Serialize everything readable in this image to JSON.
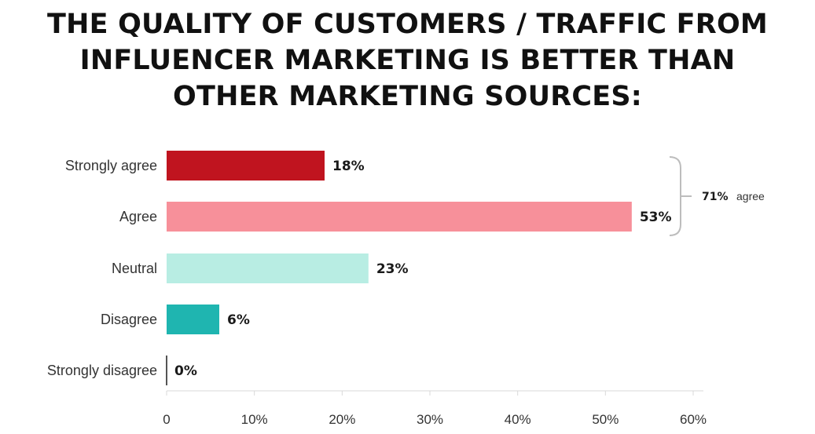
{
  "chart_data": {
    "type": "bar",
    "orientation": "horizontal",
    "title_lines": [
      "THE QUALITY OF CUSTOMERS / TRAFFIC FROM",
      "INFLUENCER MARKETING IS BETTER THAN",
      "OTHER MARKETING SOURCES:"
    ],
    "categories": [
      "Strongly agree",
      "Agree",
      "Neutral",
      "Disagree",
      "Strongly disagree"
    ],
    "values": [
      18,
      53,
      23,
      6,
      0
    ],
    "value_labels": [
      "18%",
      "53%",
      "23%",
      "6%",
      "0%"
    ],
    "colors": [
      "#c0141f",
      "#f7909a",
      "#b8ede3",
      "#1fb5b0",
      "#555555"
    ],
    "xlim": [
      0,
      60
    ],
    "x_ticks": [
      0,
      10,
      20,
      30,
      40,
      50,
      60
    ],
    "x_tick_labels": [
      "0",
      "10%",
      "20%",
      "30%",
      "40%",
      "50%",
      "60%"
    ],
    "grid": false,
    "annotation": {
      "bracket_categories": [
        "Strongly agree",
        "Agree"
      ],
      "value_text": "71%",
      "word_text": "agree"
    }
  }
}
